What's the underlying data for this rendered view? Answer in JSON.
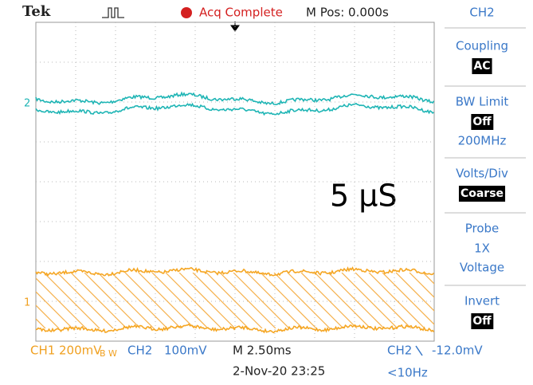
{
  "header": {
    "brand": "Tek",
    "status": "Acq Complete",
    "position": "M Pos: 0.000s"
  },
  "channel_markers": [
    "2",
    "1"
  ],
  "annotation": "5 μS",
  "side_menu": {
    "channel": "CH2",
    "items": [
      {
        "label": "Coupling",
        "value": "AC",
        "boxed": true
      },
      {
        "label": "BW Limit",
        "value": "Off",
        "boxed": true,
        "note": "200MHz"
      },
      {
        "label": "Volts/Div",
        "value": "Coarse",
        "boxed": true
      },
      {
        "label": "Probe",
        "value": "1X",
        "boxed": false,
        "note": "Voltage"
      },
      {
        "label": "Invert",
        "value": "Off",
        "boxed": true
      }
    ]
  },
  "footer": {
    "ch1": "CH1",
    "ch1_scale": "200mV",
    "bw_flag": "B W",
    "ch2": "CH2",
    "ch2_scale": "100mV",
    "timebase": "M 2.50ms",
    "trigger_source": "CH2",
    "trigger_level": "-12.0mV",
    "date": "2-Nov-20 23:25",
    "frequency": "<10Hz"
  }
}
